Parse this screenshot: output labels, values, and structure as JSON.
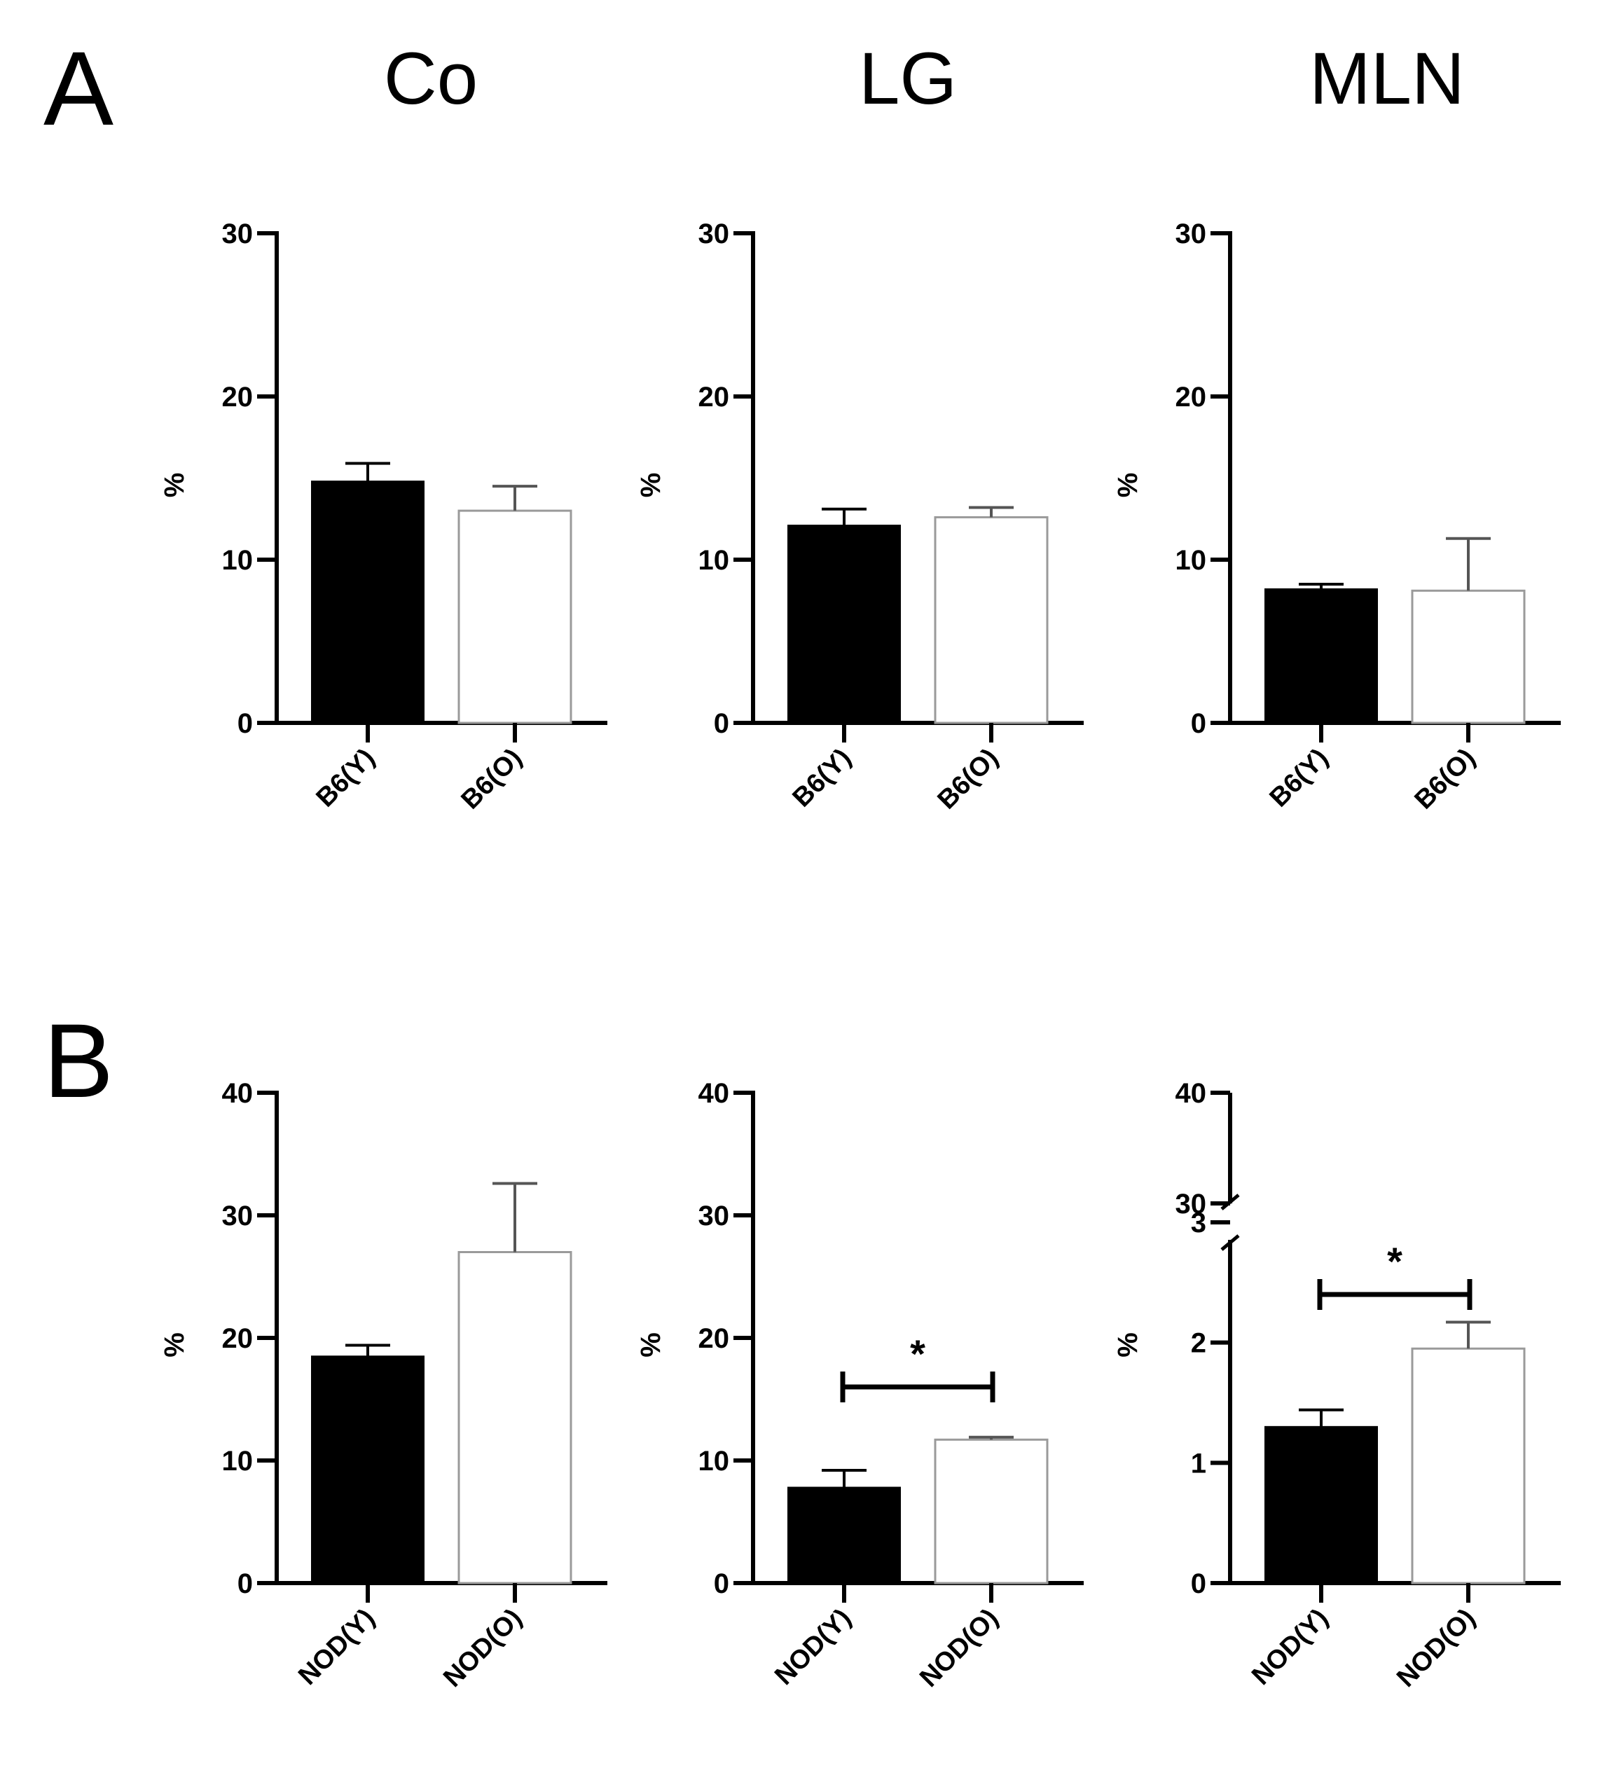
{
  "panel_letters": {
    "a": "A",
    "b": "B"
  },
  "column_titles": [
    "Co",
    "LG",
    "MLN"
  ],
  "colors": {
    "young_fill": "#000000",
    "old_fill": "#ffffff",
    "axis": "#000000",
    "old_stroke": "#9a9a9a"
  },
  "chart_data": [
    {
      "id": "A-Co",
      "panel": "A",
      "column": "Co",
      "type": "bar",
      "categories": [
        "B6(Y)",
        "B6(O)"
      ],
      "values": [
        14.8,
        13.0
      ],
      "errors": [
        1.1,
        1.5
      ],
      "ylabel": "%",
      "ylim": [
        0,
        30
      ],
      "yticks": [
        "0",
        "10",
        "20",
        "30"
      ],
      "significance": null
    },
    {
      "id": "A-LG",
      "panel": "A",
      "column": "LG",
      "type": "bar",
      "categories": [
        "B6(Y)",
        "B6(O)"
      ],
      "values": [
        12.1,
        12.6
      ],
      "errors": [
        1.0,
        0.6
      ],
      "ylabel": "%",
      "ylim": [
        0,
        30
      ],
      "yticks": [
        "0",
        "10",
        "20",
        "30"
      ],
      "significance": null
    },
    {
      "id": "A-MLN",
      "panel": "A",
      "column": "MLN",
      "type": "bar",
      "categories": [
        "B6(Y)",
        "B6(O)"
      ],
      "values": [
        8.2,
        8.1
      ],
      "errors": [
        0.3,
        3.2
      ],
      "ylabel": "%",
      "ylim": [
        0,
        30
      ],
      "yticks": [
        "0",
        "10",
        "20",
        "30"
      ],
      "significance": null
    },
    {
      "id": "B-Co",
      "panel": "B",
      "column": "Co",
      "type": "bar",
      "categories": [
        "NOD(Y)",
        "NOD(O)"
      ],
      "values": [
        18.5,
        27.0
      ],
      "errors": [
        0.9,
        5.6
      ],
      "ylabel": "%",
      "ylim": [
        0,
        40
      ],
      "yticks": [
        "0",
        "10",
        "20",
        "30",
        "40"
      ],
      "significance": null
    },
    {
      "id": "B-LG",
      "panel": "B",
      "column": "LG",
      "type": "bar",
      "categories": [
        "NOD(Y)",
        "NOD(O)"
      ],
      "values": [
        7.8,
        11.7
      ],
      "errors": [
        1.4,
        0.2
      ],
      "ylabel": "%",
      "ylim": [
        0,
        40
      ],
      "yticks": [
        "0",
        "10",
        "20",
        "30",
        "40"
      ],
      "significance": {
        "label": "*",
        "level": 16
      }
    },
    {
      "id": "B-MLN",
      "panel": "B",
      "column": "MLN",
      "type": "bar",
      "categories": [
        "NOD(Y)",
        "NOD(O)"
      ],
      "values": [
        1.3,
        1.95
      ],
      "errors": [
        0.14,
        0.22
      ],
      "ylabel": "%",
      "ylim": [
        0,
        3
      ],
      "yticks": [
        "0",
        "1",
        "2",
        "3"
      ],
      "axis_break": {
        "upper_range": [
          30,
          40
        ],
        "upper_ticks": [
          "30",
          "40"
        ]
      },
      "significance": {
        "label": "*",
        "level": 2.4
      }
    }
  ]
}
